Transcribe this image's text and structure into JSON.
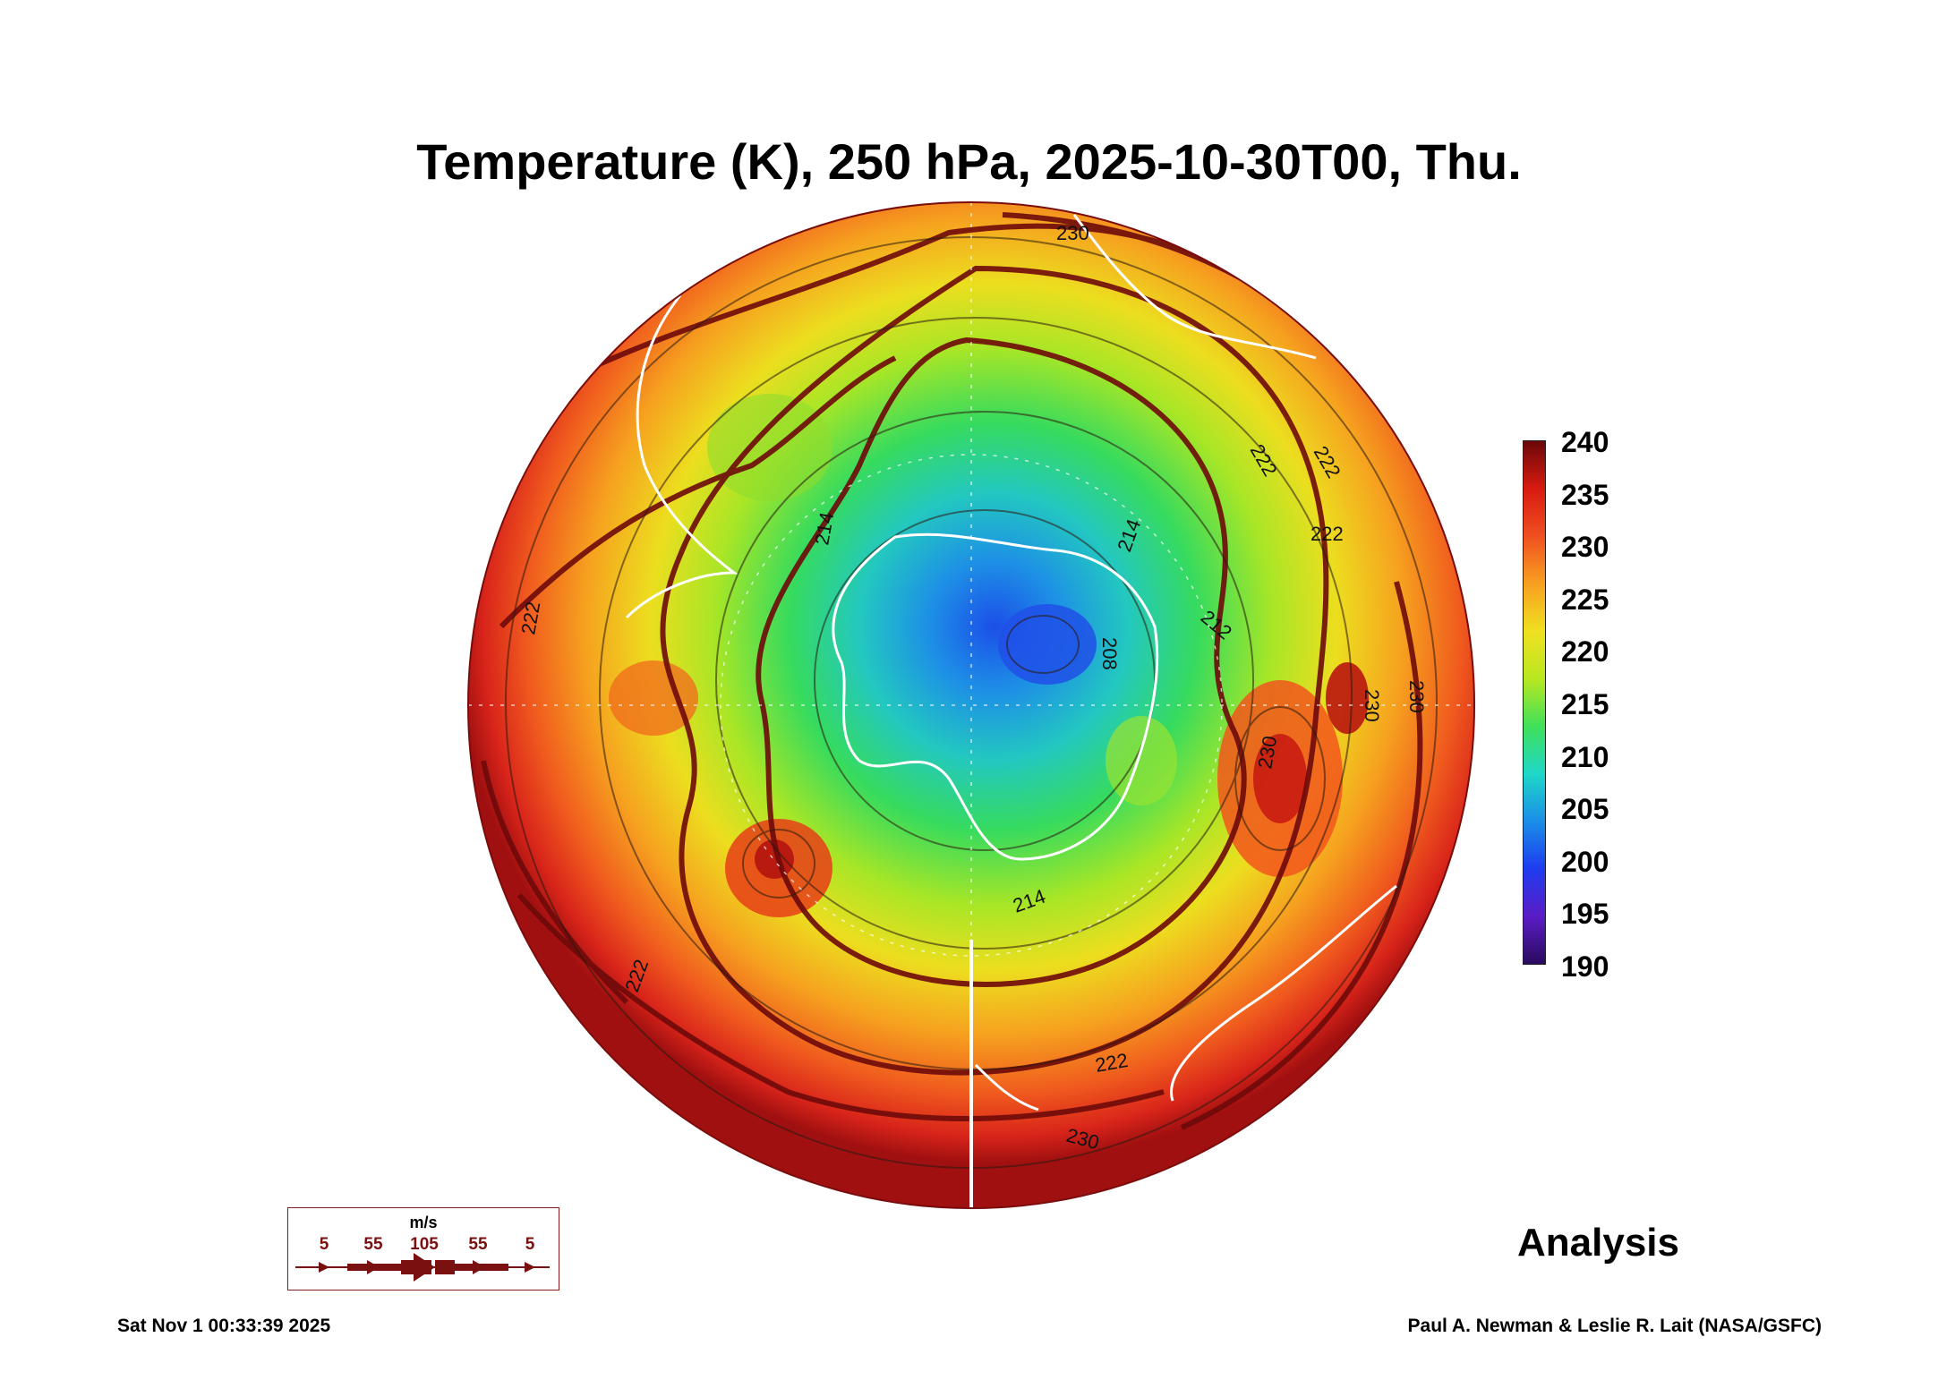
{
  "title": "Temperature (K), 250 hPa, 2025-10-30T00, Thu.",
  "colorbar": {
    "labels": [
      "240",
      "235",
      "230",
      "225",
      "220",
      "215",
      "210",
      "205",
      "200",
      "195",
      "190"
    ],
    "min": 190,
    "max": 240,
    "stops": [
      "#2a0a5e",
      "#5b1cc6",
      "#1f3cf0",
      "#1a8ee8",
      "#1fd8c8",
      "#3fe05a",
      "#b8e820",
      "#f0e020",
      "#f7a020",
      "#f05020",
      "#d81a10",
      "#6b0808"
    ]
  },
  "contour_labels": [
    "230",
    "222",
    "222",
    "214",
    "214",
    "212",
    "208",
    "222",
    "222",
    "230",
    "230",
    "222",
    "214",
    "222",
    "230",
    "230"
  ],
  "analysis_label": "Analysis",
  "wind_legend": {
    "unit": "m/s",
    "ticks": [
      "5",
      "55",
      "105",
      "55",
      "5"
    ]
  },
  "footer": {
    "timestamp": "Sat Nov  1 00:33:39 2025",
    "credit": "Paul A. Newman & Leslie R. Lait (NASA/GSFC)"
  }
}
